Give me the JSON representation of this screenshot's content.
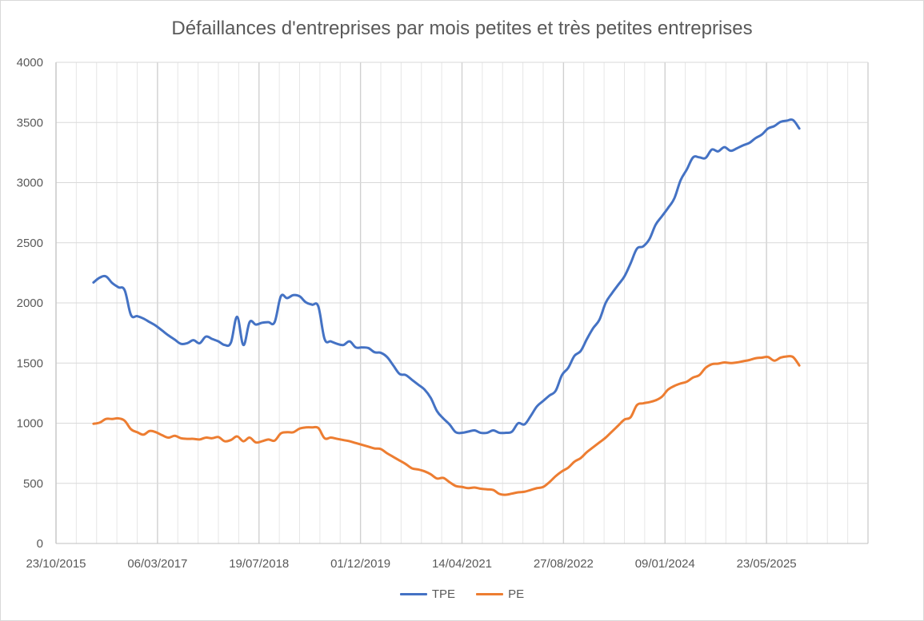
{
  "chart_data": {
    "type": "line",
    "title": "Défaillances d'entreprises par mois petites et très petites entreprises",
    "xlabel": "",
    "ylabel": "",
    "ylim": [
      0,
      4000
    ],
    "y_ticks": [
      0,
      500,
      1000,
      1500,
      2000,
      2500,
      3000,
      3500,
      4000
    ],
    "x_tick_labels": [
      "23/10/2015",
      "06/03/2017",
      "19/07/2018",
      "01/12/2019",
      "14/04/2021",
      "27/08/2022",
      "09/01/2024",
      "23/05/2025"
    ],
    "grid": true,
    "legend_position": "bottom",
    "series": [
      {
        "name": "TPE",
        "color": "#4472c4",
        "x_month_index": [
          0,
          1,
          2,
          3,
          4,
          5,
          6,
          7,
          8,
          9,
          10,
          11,
          12,
          13,
          14,
          15,
          16,
          17,
          18,
          19,
          20,
          21,
          22,
          23,
          24,
          25,
          26,
          27,
          28,
          29,
          30,
          31,
          32,
          33,
          34,
          35,
          36,
          37,
          38,
          39,
          40,
          41,
          42,
          43,
          44,
          45,
          46,
          47,
          48,
          49,
          50,
          51,
          52,
          53,
          54,
          55,
          56,
          57,
          58,
          59,
          60,
          61,
          62,
          63,
          64,
          65,
          66,
          67,
          68,
          69,
          70,
          71,
          72,
          73,
          74,
          75,
          76,
          77,
          78,
          79,
          80,
          81,
          82,
          83,
          84,
          85,
          86,
          87,
          88,
          89,
          90,
          91,
          92,
          93,
          94,
          95,
          96,
          97,
          98,
          99,
          100,
          101,
          102,
          103,
          104,
          105,
          106,
          107,
          108,
          109,
          110,
          111,
          112,
          113
        ],
        "values": [
          2170,
          2210,
          2220,
          2165,
          2130,
          2105,
          1900,
          1890,
          1870,
          1840,
          1810,
          1770,
          1730,
          1695,
          1660,
          1665,
          1690,
          1665,
          1720,
          1700,
          1680,
          1650,
          1670,
          1885,
          1650,
          1840,
          1820,
          1835,
          1840,
          1840,
          2055,
          2040,
          2065,
          2055,
          2005,
          1985,
          1970,
          1700,
          1680,
          1660,
          1650,
          1680,
          1630,
          1630,
          1625,
          1590,
          1585,
          1550,
          1480,
          1410,
          1400,
          1360,
          1320,
          1280,
          1210,
          1100,
          1040,
          990,
          925,
          920,
          930,
          940,
          920,
          920,
          940,
          920,
          920,
          930,
          1000,
          990,
          1060,
          1140,
          1185,
          1230,
          1270,
          1400,
          1460,
          1560,
          1600,
          1700,
          1790,
          1860,
          2000,
          2080,
          2150,
          2220,
          2330,
          2450,
          2470,
          2530,
          2650,
          2720,
          2790,
          2870,
          3020,
          3110,
          3210,
          3210,
          3205,
          3275,
          3260,
          3295,
          3265,
          3285,
          3310,
          3330,
          3370,
          3400,
          3450,
          3470,
          3505,
          3515,
          3520,
          3450
        ]
      },
      {
        "name": "PE",
        "color": "#ed7d31",
        "x_month_index": [
          0,
          1,
          2,
          3,
          4,
          5,
          6,
          7,
          8,
          9,
          10,
          11,
          12,
          13,
          14,
          15,
          16,
          17,
          18,
          19,
          20,
          21,
          22,
          23,
          24,
          25,
          26,
          27,
          28,
          29,
          30,
          31,
          32,
          33,
          34,
          35,
          36,
          37,
          38,
          39,
          40,
          41,
          42,
          43,
          44,
          45,
          46,
          47,
          48,
          49,
          50,
          51,
          52,
          53,
          54,
          55,
          56,
          57,
          58,
          59,
          60,
          61,
          62,
          63,
          64,
          65,
          66,
          67,
          68,
          69,
          70,
          71,
          72,
          73,
          74,
          75,
          76,
          77,
          78,
          79,
          80,
          81,
          82,
          83,
          84,
          85,
          86,
          87,
          88,
          89,
          90,
          91,
          92,
          93,
          94,
          95,
          96,
          97,
          98,
          99,
          100,
          101,
          102,
          103,
          104,
          105,
          106,
          107,
          108,
          109,
          110,
          111,
          112,
          113
        ],
        "values": [
          995,
          1005,
          1035,
          1035,
          1040,
          1020,
          950,
          925,
          905,
          935,
          925,
          900,
          880,
          895,
          875,
          870,
          870,
          865,
          880,
          875,
          885,
          850,
          860,
          890,
          850,
          880,
          840,
          850,
          865,
          855,
          915,
          925,
          925,
          955,
          965,
          965,
          960,
          875,
          880,
          870,
          860,
          850,
          835,
          820,
          805,
          790,
          785,
          750,
          720,
          690,
          660,
          625,
          615,
          600,
          575,
          540,
          545,
          510,
          478,
          470,
          460,
          465,
          455,
          450,
          445,
          412,
          405,
          415,
          425,
          430,
          445,
          460,
          470,
          510,
          560,
          600,
          630,
          680,
          710,
          760,
          800,
          840,
          880,
          930,
          980,
          1030,
          1050,
          1150,
          1165,
          1175,
          1190,
          1220,
          1280,
          1310,
          1330,
          1345,
          1380,
          1400,
          1460,
          1490,
          1495,
          1505,
          1500,
          1505,
          1515,
          1525,
          1540,
          1545,
          1550,
          1520,
          1545,
          1555,
          1550,
          1480
        ]
      }
    ]
  }
}
